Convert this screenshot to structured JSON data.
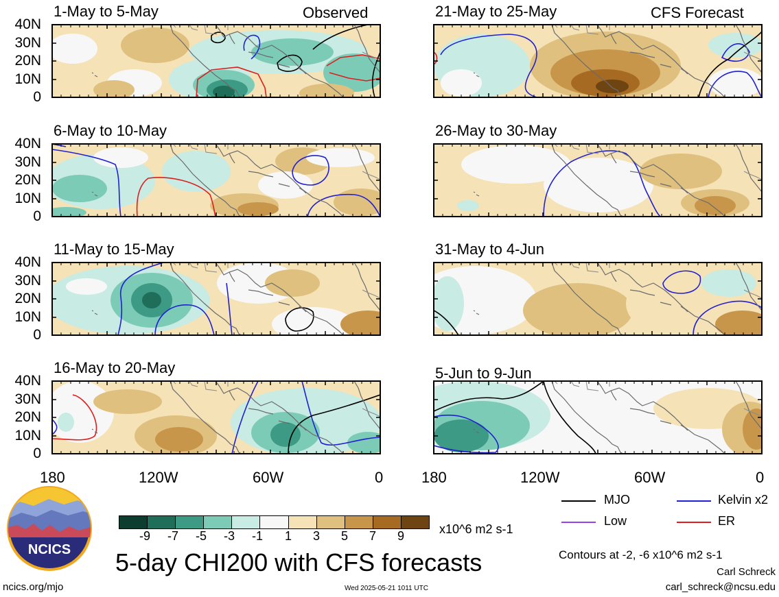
{
  "panels": [
    {
      "title": "1-May to 5-May",
      "tag": "Observed"
    },
    {
      "title": "6-May to 10-May",
      "tag": ""
    },
    {
      "title": "11-May to 15-May",
      "tag": ""
    },
    {
      "title": "16-May to 20-May",
      "tag": ""
    },
    {
      "title": "21-May to 25-May",
      "tag": "CFS Forecast"
    },
    {
      "title": "26-May to 30-May",
      "tag": ""
    },
    {
      "title": "31-May to 4-Jun",
      "tag": ""
    },
    {
      "title": "5-Jun to 9-Jun",
      "tag": ""
    }
  ],
  "y_ticks": [
    "40N",
    "30N",
    "20N",
    "10N",
    "0"
  ],
  "x_ticks": [
    "180",
    "120W",
    "60W",
    "0"
  ],
  "colorbar": {
    "labels": [
      "-9",
      "-7",
      "-5",
      "-3",
      "-1",
      "1",
      "3",
      "5",
      "7",
      "9"
    ],
    "units": "x10^6 m2 s-1",
    "colors": [
      "#0c3d2e",
      "#1e6e5a",
      "#3d9a85",
      "#7ccbb7",
      "#c8ebe3",
      "#f7f7f7",
      "#f5e2b6",
      "#dfc07e",
      "#c8964a",
      "#a66a22",
      "#6e4412"
    ]
  },
  "legend": [
    {
      "label": "MJO",
      "color": "#000000"
    },
    {
      "label": "Kelvin x2",
      "color": "#1f1fd6"
    },
    {
      "label": "Low",
      "color": "#9a3ee6"
    },
    {
      "label": "ER",
      "color": "#e01b1b"
    }
  ],
  "logo_text": "NCICS",
  "main_title": "5-day CHI200 with CFS forecasts",
  "contours_note": "Contours at -2, -6 x10^6 m2 s-1",
  "author": "Carl Schreck",
  "email": "carl_schreck@ncsu.edu",
  "url": "ncics.org/mjo",
  "timestamp": "Wed 2025-05-21 1011 UTC"
}
